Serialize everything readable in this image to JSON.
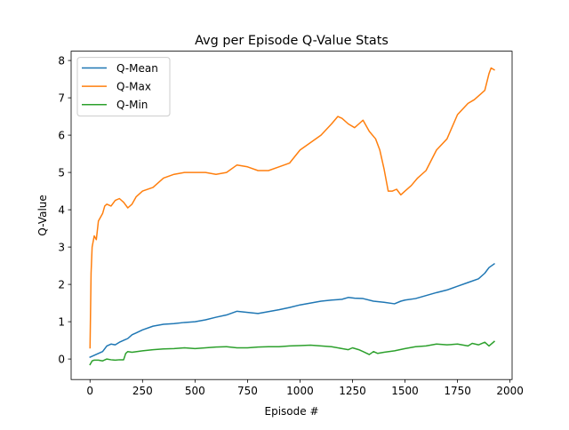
{
  "chart_data": {
    "type": "line",
    "title": "Avg per Episode Q-Value Stats",
    "xlabel": "Episode #",
    "ylabel": "Q-Value",
    "xlim": [
      -90,
      2010
    ],
    "ylim": [
      -0.55,
      8.25
    ],
    "x_ticks": [
      0,
      250,
      500,
      750,
      1000,
      1250,
      1500,
      1750,
      2000
    ],
    "y_ticks": [
      0,
      1,
      2,
      3,
      4,
      5,
      6,
      7,
      8
    ],
    "grid": false,
    "legend": "top-left",
    "series": [
      {
        "name": "Q-Mean",
        "color": "#1f77b4",
        "x": [
          0,
          20,
          40,
          60,
          80,
          100,
          120,
          140,
          160,
          180,
          200,
          220,
          250,
          300,
          350,
          400,
          450,
          500,
          550,
          600,
          650,
          700,
          750,
          800,
          850,
          900,
          950,
          1000,
          1050,
          1100,
          1150,
          1200,
          1230,
          1260,
          1300,
          1350,
          1400,
          1450,
          1480,
          1500,
          1550,
          1600,
          1650,
          1700,
          1750,
          1800,
          1850,
          1880,
          1900,
          1925
        ],
        "y": [
          0.05,
          0.1,
          0.15,
          0.2,
          0.35,
          0.4,
          0.38,
          0.45,
          0.5,
          0.55,
          0.65,
          0.7,
          0.78,
          0.88,
          0.93,
          0.95,
          0.98,
          1.0,
          1.05,
          1.12,
          1.18,
          1.28,
          1.25,
          1.22,
          1.27,
          1.32,
          1.38,
          1.45,
          1.5,
          1.55,
          1.58,
          1.6,
          1.65,
          1.63,
          1.62,
          1.55,
          1.52,
          1.48,
          1.55,
          1.58,
          1.62,
          1.7,
          1.78,
          1.85,
          1.95,
          2.05,
          2.15,
          2.3,
          2.45,
          2.55
        ]
      },
      {
        "name": "Q-Max",
        "color": "#ff7f0e",
        "x": [
          0,
          5,
          10,
          20,
          30,
          40,
          50,
          60,
          70,
          80,
          100,
          120,
          140,
          160,
          180,
          200,
          220,
          250,
          300,
          350,
          400,
          450,
          500,
          550,
          600,
          650,
          700,
          750,
          800,
          850,
          900,
          950,
          1000,
          1050,
          1100,
          1150,
          1180,
          1200,
          1230,
          1260,
          1280,
          1300,
          1330,
          1360,
          1380,
          1400,
          1420,
          1440,
          1460,
          1480,
          1500,
          1530,
          1560,
          1600,
          1650,
          1700,
          1750,
          1800,
          1830,
          1860,
          1880,
          1900,
          1910,
          1925
        ],
        "y": [
          0.3,
          2.3,
          3.0,
          3.3,
          3.2,
          3.7,
          3.8,
          3.9,
          4.1,
          4.15,
          4.1,
          4.25,
          4.3,
          4.2,
          4.05,
          4.15,
          4.35,
          4.5,
          4.6,
          4.85,
          4.95,
          5.0,
          5.0,
          5.0,
          4.95,
          5.0,
          5.2,
          5.15,
          5.05,
          5.05,
          5.15,
          5.25,
          5.6,
          5.8,
          6.0,
          6.3,
          6.5,
          6.45,
          6.3,
          6.2,
          6.3,
          6.4,
          6.1,
          5.9,
          5.6,
          5.1,
          4.5,
          4.5,
          4.55,
          4.4,
          4.5,
          4.65,
          4.85,
          5.05,
          5.6,
          5.9,
          6.55,
          6.85,
          6.95,
          7.1,
          7.2,
          7.65,
          7.8,
          7.75
        ]
      },
      {
        "name": "Q-Min",
        "color": "#2ca02c",
        "x": [
          0,
          10,
          20,
          40,
          60,
          80,
          100,
          120,
          140,
          160,
          170,
          180,
          200,
          250,
          300,
          350,
          400,
          450,
          500,
          550,
          600,
          650,
          700,
          750,
          800,
          850,
          900,
          950,
          1000,
          1050,
          1100,
          1150,
          1200,
          1230,
          1250,
          1280,
          1300,
          1330,
          1350,
          1370,
          1400,
          1450,
          1500,
          1550,
          1600,
          1650,
          1700,
          1750,
          1800,
          1820,
          1850,
          1880,
          1900,
          1925
        ],
        "y": [
          -0.15,
          -0.05,
          -0.03,
          -0.03,
          -0.05,
          0.0,
          -0.02,
          -0.03,
          -0.02,
          -0.02,
          0.15,
          0.2,
          0.18,
          0.22,
          0.25,
          0.27,
          0.28,
          0.3,
          0.28,
          0.3,
          0.32,
          0.33,
          0.3,
          0.3,
          0.32,
          0.33,
          0.33,
          0.35,
          0.36,
          0.37,
          0.35,
          0.33,
          0.28,
          0.25,
          0.3,
          0.25,
          0.2,
          0.12,
          0.2,
          0.15,
          0.18,
          0.22,
          0.28,
          0.33,
          0.35,
          0.4,
          0.38,
          0.4,
          0.35,
          0.42,
          0.38,
          0.45,
          0.35,
          0.47
        ]
      }
    ]
  }
}
